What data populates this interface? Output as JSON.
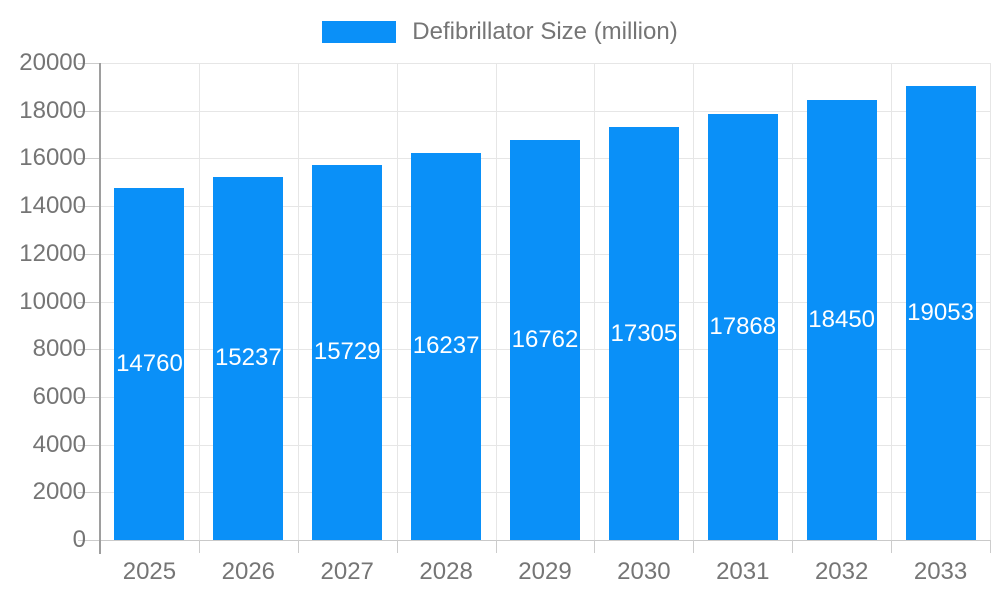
{
  "legend": {
    "label": "Defibrillator Size (million)",
    "swatch_color": "#0a90f8"
  },
  "chart_data": {
    "type": "bar",
    "title": "Defibrillator Size (million)",
    "series": [
      {
        "name": "Defibrillator Size (million)",
        "values": [
          14760,
          15237,
          15729,
          16237,
          16762,
          17305,
          17868,
          18450,
          19053
        ]
      }
    ],
    "categories": [
      "2025",
      "2026",
      "2027",
      "2028",
      "2029",
      "2030",
      "2031",
      "2032",
      "2033"
    ],
    "xlabel": "",
    "ylabel": "",
    "ylim": [
      0,
      20000
    ],
    "ytick_step": 2000,
    "yticks": [
      0,
      2000,
      4000,
      6000,
      8000,
      10000,
      12000,
      14000,
      16000,
      18000,
      20000
    ],
    "grid": true,
    "legend_position": "top",
    "value_labels": "inside-center"
  },
  "colors": {
    "bar": "#0a90f8",
    "axis_text": "#757575",
    "grid_line": "#e6e6e6",
    "axis_line": "#9e9e9e",
    "tick_line": "#cccccc",
    "value_label": "#ffffff",
    "background": "#ffffff"
  }
}
